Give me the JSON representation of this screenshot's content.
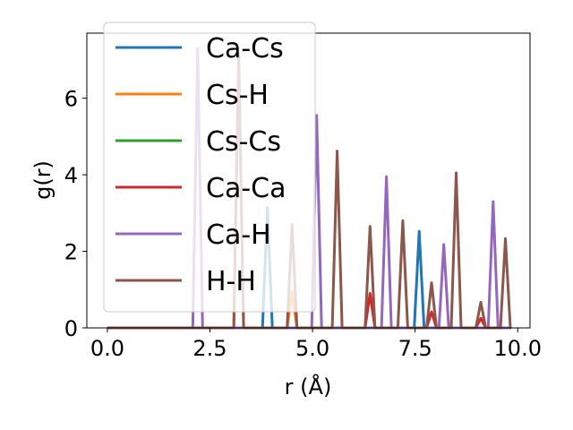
{
  "chart_data": {
    "type": "line",
    "title": "",
    "xlabel": "r (Å)",
    "ylabel": "g(r)",
    "xlim": [
      -0.5,
      10.3
    ],
    "ylim": [
      0,
      7.7
    ],
    "xticks": [
      0.0,
      2.5,
      5.0,
      7.5,
      10.0
    ],
    "xtick_labels": [
      "0.0",
      "2.5",
      "5.0",
      "7.5",
      "10.0"
    ],
    "yticks": [
      0,
      2,
      4,
      6
    ],
    "ytick_labels": [
      "0",
      "2",
      "4",
      "6"
    ],
    "grid": false,
    "legend_position": "top-left",
    "baseline_x": [
      0,
      9.8
    ],
    "series": [
      {
        "name": "Ca-Cs",
        "color": "#1f77b4",
        "peaks": [
          [
            3.9,
            3.15
          ],
          [
            7.6,
            2.52
          ]
        ]
      },
      {
        "name": "Cs-H",
        "color": "#ff7f0e",
        "peaks": [
          [
            3.2,
            7.1
          ],
          [
            4.5,
            0.95
          ]
        ]
      },
      {
        "name": "Cs-Cs",
        "color": "#2ca02c",
        "peaks": []
      },
      {
        "name": "Ca-Ca",
        "color": "#d62728",
        "peaks": [
          [
            6.4,
            0.9
          ],
          [
            7.9,
            0.42
          ],
          [
            9.1,
            0.25
          ]
        ]
      },
      {
        "name": "Ca-H",
        "color": "#9467bd",
        "peaks": [
          [
            2.2,
            7.3
          ],
          [
            5.1,
            5.55
          ],
          [
            6.8,
            3.95
          ],
          [
            8.2,
            2.18
          ],
          [
            9.4,
            3.3
          ]
        ]
      },
      {
        "name": "H-H",
        "color": "#8c564b",
        "peaks": [
          [
            3.2,
            7.15
          ],
          [
            4.5,
            2.7
          ],
          [
            5.6,
            4.62
          ],
          [
            6.4,
            2.65
          ],
          [
            7.2,
            2.8
          ],
          [
            7.9,
            1.18
          ],
          [
            8.5,
            4.05
          ],
          [
            9.1,
            0.67
          ],
          [
            9.7,
            2.33
          ]
        ]
      }
    ]
  }
}
